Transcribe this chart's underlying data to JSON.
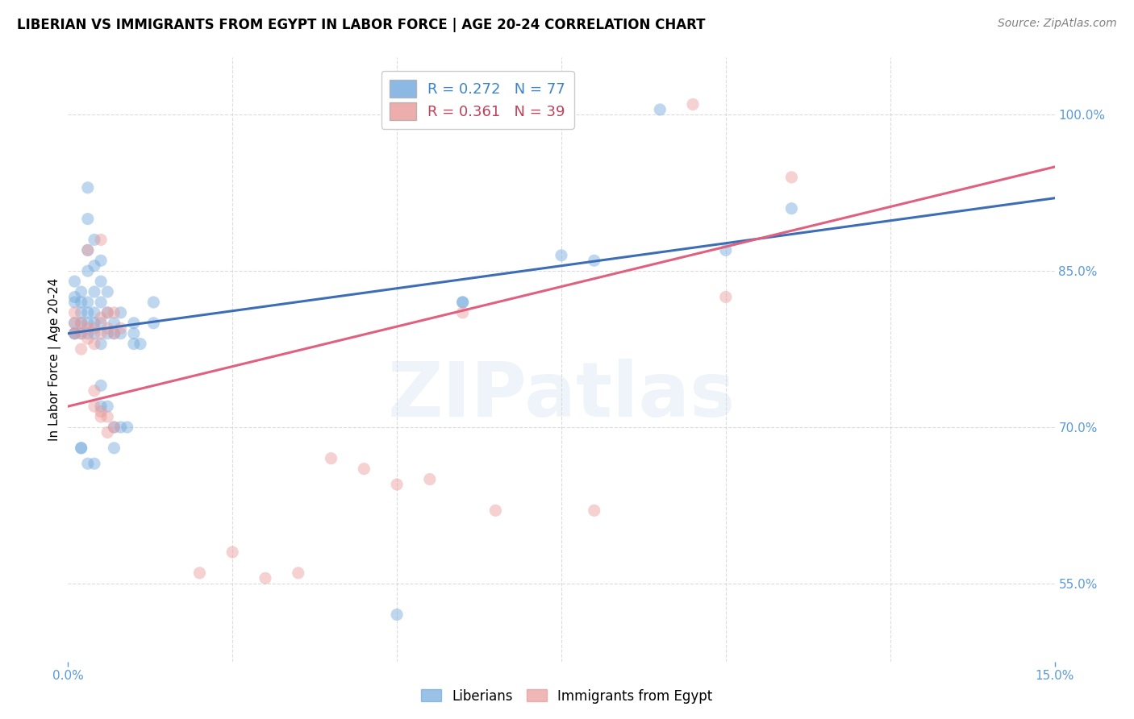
{
  "title": "LIBERIAN VS IMMIGRANTS FROM EGYPT IN LABOR FORCE | AGE 20-24 CORRELATION CHART",
  "source": "Source: ZipAtlas.com",
  "ylabel_label": "In Labor Force | Age 20-24",
  "ylabel_ticks": [
    55.0,
    70.0,
    85.0,
    100.0
  ],
  "xmin": 0.0,
  "xmax": 0.15,
  "ymin": 0.475,
  "ymax": 1.055,
  "legend_color1": "#6fa8dc",
  "legend_color2": "#ea9999",
  "legend_text_color1": "#3d85c8",
  "legend_text_color2": "#c0405a",
  "watermark": "ZIPatlas",
  "blue_scatter": [
    [
      0.001,
      0.79
    ],
    [
      0.001,
      0.8
    ],
    [
      0.001,
      0.82
    ],
    [
      0.001,
      0.825
    ],
    [
      0.001,
      0.84
    ],
    [
      0.001,
      0.79
    ],
    [
      0.002,
      0.79
    ],
    [
      0.002,
      0.8
    ],
    [
      0.002,
      0.81
    ],
    [
      0.002,
      0.82
    ],
    [
      0.002,
      0.83
    ],
    [
      0.003,
      0.79
    ],
    [
      0.003,
      0.8
    ],
    [
      0.003,
      0.81
    ],
    [
      0.003,
      0.82
    ],
    [
      0.003,
      0.85
    ],
    [
      0.003,
      0.87
    ],
    [
      0.003,
      0.9
    ],
    [
      0.003,
      0.93
    ],
    [
      0.004,
      0.79
    ],
    [
      0.004,
      0.8
    ],
    [
      0.004,
      0.81
    ],
    [
      0.004,
      0.83
    ],
    [
      0.004,
      0.855
    ],
    [
      0.004,
      0.88
    ],
    [
      0.005,
      0.78
    ],
    [
      0.005,
      0.8
    ],
    [
      0.005,
      0.82
    ],
    [
      0.005,
      0.84
    ],
    [
      0.005,
      0.86
    ],
    [
      0.006,
      0.79
    ],
    [
      0.006,
      0.81
    ],
    [
      0.006,
      0.83
    ],
    [
      0.007,
      0.79
    ],
    [
      0.007,
      0.8
    ],
    [
      0.008,
      0.79
    ],
    [
      0.008,
      0.81
    ],
    [
      0.01,
      0.79
    ],
    [
      0.013,
      0.8
    ],
    [
      0.013,
      0.82
    ],
    [
      0.002,
      0.68
    ],
    [
      0.002,
      0.68
    ],
    [
      0.003,
      0.665
    ],
    [
      0.004,
      0.665
    ],
    [
      0.005,
      0.72
    ],
    [
      0.005,
      0.74
    ],
    [
      0.006,
      0.72
    ],
    [
      0.007,
      0.7
    ],
    [
      0.007,
      0.68
    ],
    [
      0.008,
      0.7
    ],
    [
      0.009,
      0.7
    ],
    [
      0.01,
      0.78
    ],
    [
      0.01,
      0.8
    ],
    [
      0.011,
      0.78
    ],
    [
      0.06,
      0.82
    ],
    [
      0.06,
      0.82
    ],
    [
      0.075,
      0.865
    ],
    [
      0.08,
      0.86
    ],
    [
      0.09,
      1.005
    ],
    [
      0.1,
      0.87
    ],
    [
      0.11,
      0.91
    ],
    [
      0.05,
      0.52
    ]
  ],
  "pink_scatter": [
    [
      0.001,
      0.79
    ],
    [
      0.001,
      0.8
    ],
    [
      0.001,
      0.81
    ],
    [
      0.002,
      0.775
    ],
    [
      0.002,
      0.79
    ],
    [
      0.002,
      0.8
    ],
    [
      0.003,
      0.785
    ],
    [
      0.003,
      0.795
    ],
    [
      0.004,
      0.78
    ],
    [
      0.004,
      0.795
    ],
    [
      0.005,
      0.79
    ],
    [
      0.005,
      0.805
    ],
    [
      0.006,
      0.795
    ],
    [
      0.006,
      0.81
    ],
    [
      0.007,
      0.79
    ],
    [
      0.007,
      0.81
    ],
    [
      0.008,
      0.795
    ],
    [
      0.003,
      0.87
    ],
    [
      0.005,
      0.88
    ],
    [
      0.004,
      0.72
    ],
    [
      0.004,
      0.735
    ],
    [
      0.005,
      0.715
    ],
    [
      0.005,
      0.71
    ],
    [
      0.006,
      0.71
    ],
    [
      0.006,
      0.695
    ],
    [
      0.007,
      0.7
    ],
    [
      0.02,
      0.56
    ],
    [
      0.025,
      0.58
    ],
    [
      0.03,
      0.555
    ],
    [
      0.035,
      0.56
    ],
    [
      0.04,
      0.67
    ],
    [
      0.045,
      0.66
    ],
    [
      0.05,
      0.645
    ],
    [
      0.055,
      0.65
    ],
    [
      0.065,
      0.62
    ],
    [
      0.08,
      0.62
    ],
    [
      0.095,
      1.01
    ],
    [
      0.11,
      0.94
    ],
    [
      0.1,
      0.825
    ],
    [
      0.06,
      0.81
    ]
  ],
  "blue_line_x": [
    0.0,
    0.15
  ],
  "blue_line_y": [
    0.79,
    0.92
  ],
  "pink_line_x": [
    0.0,
    0.15
  ],
  "pink_line_y": [
    0.72,
    0.95
  ],
  "blue_line_color": "#3d6eb5",
  "pink_line_color": "#e06080",
  "marker_size": 120,
  "marker_alpha": 0.45,
  "line_width": 2.2,
  "title_fontsize": 12,
  "axis_label_fontsize": 11,
  "tick_fontsize": 11,
  "source_fontsize": 10,
  "axis_color": "#5b9bd5",
  "grid_color": "#cccccc",
  "grid_style": "--",
  "grid_alpha": 0.7,
  "background_color": "#ffffff",
  "watermark_color": "#c8ddf0",
  "watermark_fontsize": 68,
  "watermark_alpha": 0.3,
  "x_grid_positions": [
    0.0,
    0.025,
    0.05,
    0.075,
    0.1,
    0.125,
    0.15
  ]
}
